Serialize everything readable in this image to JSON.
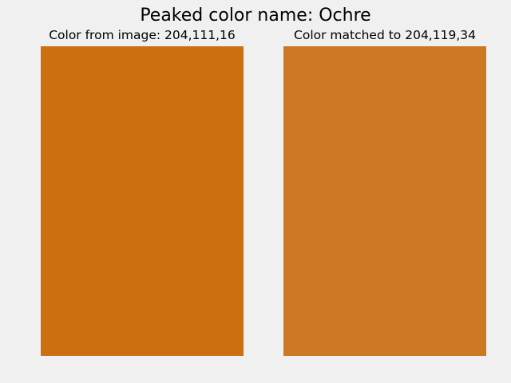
{
  "title": "Peaked color name: Ochre",
  "panels": [
    {
      "label": "Color from image: 204,111,16",
      "color": "#cc6f10"
    },
    {
      "label": "Color matched to 204,119,34",
      "color": "#cc7722"
    }
  ],
  "colors": {
    "background": "#f0f0f0"
  }
}
